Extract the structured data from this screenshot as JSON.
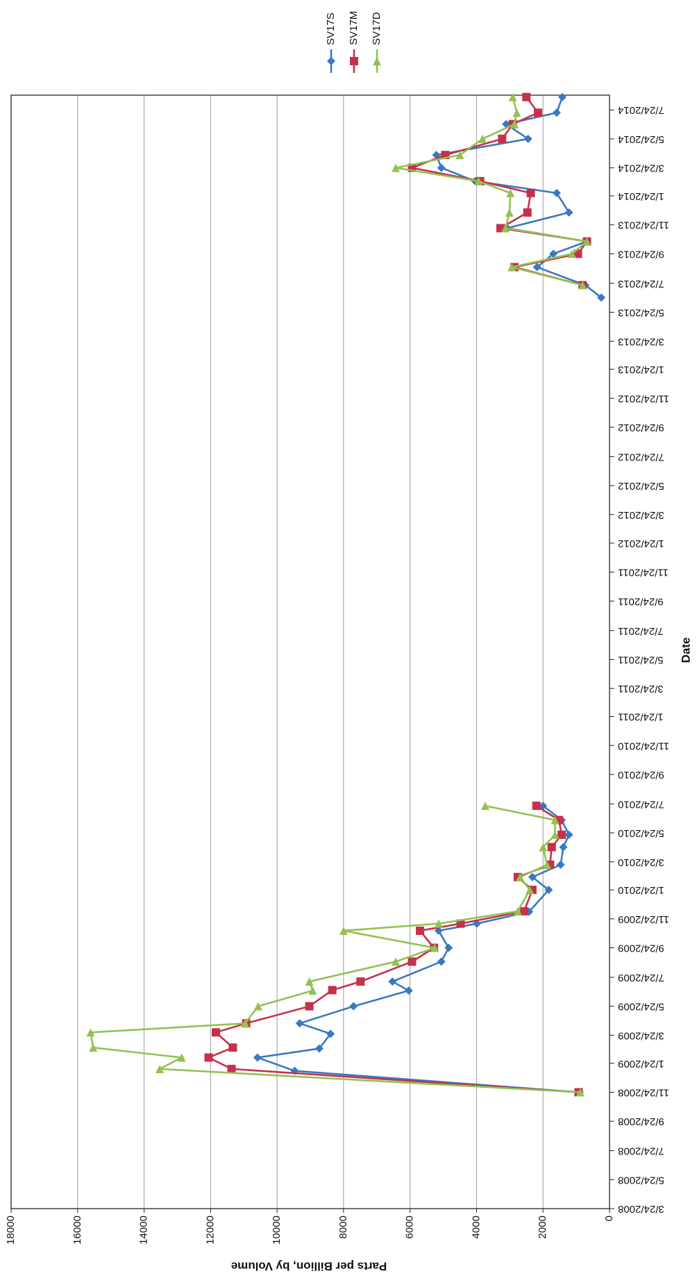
{
  "chart_data": {
    "type": "line",
    "x_label": "Date",
    "y_label": "Parts per Billion, by Volume",
    "xlim": [
      "3/24/2008",
      "8/24/2014"
    ],
    "xticks": [
      "3/24/2008",
      "5/24/2008",
      "7/24/2008",
      "9/24/2008",
      "11/24/2008",
      "1/24/2009",
      "3/24/2009",
      "5/24/2009",
      "7/24/2009",
      "9/24/2009",
      "11/24/2009",
      "1/24/2010",
      "3/24/2010",
      "5/24/2010",
      "7/24/2010",
      "9/24/2010",
      "11/24/2010",
      "1/24/2011",
      "3/24/2011",
      "5/24/2011",
      "7/24/2011",
      "9/24/2011",
      "11/24/2011",
      "1/24/2012",
      "3/24/2012",
      "5/24/2012",
      "7/24/2012",
      "9/24/2012",
      "11/24/2012",
      "1/24/2013",
      "3/24/2013",
      "5/24/2013",
      "7/24/2013",
      "9/24/2013",
      "11/24/2013",
      "1/24/2014",
      "3/24/2014",
      "5/24/2014",
      "7/24/2014"
    ],
    "ylim": [
      0,
      18000
    ],
    "yticks": [
      0,
      2000,
      4000,
      6000,
      8000,
      10000,
      12000,
      14000,
      16000,
      18000
    ],
    "grid": true,
    "legend": "right",
    "series": [
      {
        "name": "SV17S",
        "color": "#3a78c2",
        "marker": "diamond",
        "x": [
          "11/24/2008",
          "1/8/2009",
          "2/5/2009",
          "2/24/2009",
          "3/27/2009",
          "4/18/2009",
          "5/24/2009",
          "6/26/2009",
          "7/15/2009",
          "8/26/2009",
          "9/24/2009",
          "10/30/2009",
          "11/14/2009",
          "12/9/2009",
          "1/24/2010",
          "2/20/2010",
          "3/18/2010",
          "4/24/2010",
          "5/20/2010",
          "6/20/2010",
          "7/20/2010",
          null,
          "6/24/2013",
          "7/20/2013",
          "8/27/2013",
          "9/24/2013",
          "10/20/2013",
          "11/17/2013",
          "12/20/2013",
          "1/30/2014",
          "2/24/2014",
          "3/24/2014",
          "4/20/2014",
          "5/24/2014",
          "6/24/2014",
          "7/18/2014",
          "8/20/2014"
        ],
        "values": [
          900,
          9470,
          10590,
          8730,
          8390,
          9320,
          7700,
          6040,
          6530,
          5060,
          4840,
          5140,
          3990,
          2420,
          1830,
          2320,
          1470,
          1390,
          1220,
          1440,
          2000,
          null,
          250,
          730,
          2180,
          1690,
          680,
          3080,
          1220,
          1590,
          4040,
          5060,
          5210,
          2450,
          3110,
          1590,
          1420
        ]
      },
      {
        "name": "SV17M",
        "color": "#c5314b",
        "marker": "square",
        "x": [
          "11/24/2008",
          "1/12/2009",
          "2/5/2009",
          "2/26/2009",
          "3/30/2009",
          "4/18/2009",
          "5/24/2009",
          "6/27/2009",
          "7/15/2009",
          "8/26/2009",
          "9/24/2009",
          "10/30/2009",
          "11/14/2009",
          "12/10/2009",
          "1/24/2010",
          "2/20/2010",
          "3/18/2010",
          "4/24/2010",
          "5/20/2010",
          "6/20/2010",
          "7/20/2010",
          null,
          "7/20/2013",
          "8/27/2013",
          "9/24/2013",
          "10/20/2013",
          "11/17/2013",
          "12/20/2013",
          "1/30/2014",
          "2/24/2014",
          "3/24/2014",
          "4/20/2014",
          "5/24/2014",
          "6/24/2014",
          "7/18/2014",
          "8/20/2014"
        ],
        "values": [
          930,
          11370,
          12060,
          11330,
          11840,
          10930,
          9030,
          8340,
          7490,
          5940,
          5280,
          5700,
          4480,
          2570,
          2320,
          2760,
          1790,
          1740,
          1440,
          1520,
          2200,
          null,
          810,
          2860,
          950,
          680,
          3280,
          2470,
          2370,
          3890,
          5940,
          4940,
          3230,
          2910,
          2150,
          2500
        ]
      },
      {
        "name": "SV17D",
        "color": "#93c152",
        "marker": "triangle",
        "x": [
          "11/24/2008",
          "1/12/2009",
          "2/5/2009",
          "2/26/2009",
          "3/30/2009",
          "4/18/2009",
          "5/24/2009",
          "6/26/2009",
          "7/15/2009",
          "8/26/2009",
          "9/24/2009",
          "10/30/2009",
          "11/14/2009",
          "12/10/2009",
          "1/24/2010",
          "2/20/2010",
          "3/18/2010",
          "4/24/2010",
          "5/20/2010",
          "6/20/2010",
          "7/20/2010",
          null,
          "7/20/2013",
          "8/27/2013",
          "9/24/2013",
          "10/20/2013",
          "11/17/2013",
          "12/20/2013",
          "1/30/2014",
          "2/24/2014",
          "3/24/2014",
          "4/20/2014",
          "5/24/2014",
          "6/24/2014",
          "7/18/2014",
          "8/20/2014"
        ],
        "values": [
          880,
          13530,
          12870,
          15530,
          15610,
          10960,
          10570,
          8930,
          9030,
          6430,
          5260,
          8000,
          5140,
          2760,
          2400,
          2690,
          1880,
          2000,
          1640,
          1640,
          3740,
          null,
          810,
          2940,
          1130,
          680,
          3130,
          3010,
          2980,
          3940,
          6430,
          4500,
          3820,
          2860,
          2790,
          2910
        ]
      }
    ]
  }
}
